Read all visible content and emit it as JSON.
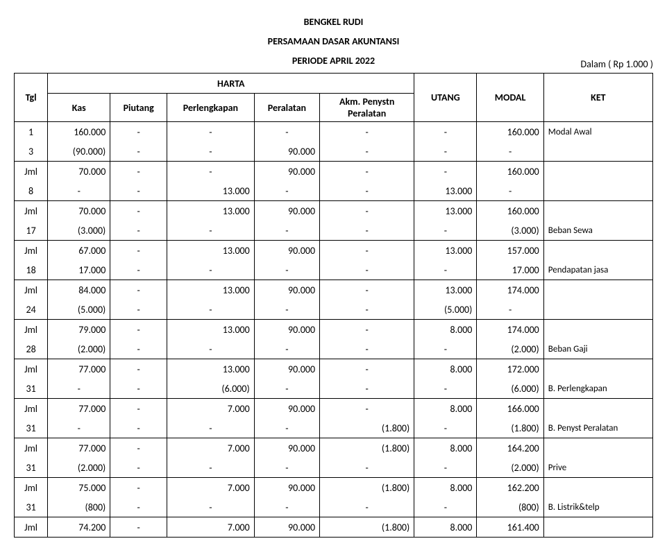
{
  "header": {
    "title1": "BENGKEL RUDI",
    "title2": "PERSAMAAN DASAR AKUNTANSI",
    "title3": "PERIODE APRIL 2022",
    "unit_note": "Dalam ( Rp 1.000 )"
  },
  "columns": {
    "tgl": "Tgl",
    "harta": "HARTA",
    "utang": "UTANG",
    "modal": "MODAL",
    "ket": "KET",
    "kas": "Kas",
    "piutang": "Piutang",
    "perlengkapan": "Perlengkapan",
    "peralatan": "Peralatan",
    "akm": "Akm. Penystn Peralatan"
  },
  "rows": [
    {
      "tgl": "1",
      "kas": "160.000",
      "piu": "-",
      "perl": "-",
      "pera": "-",
      "akm": "-",
      "utg": "-",
      "mod": "160.000",
      "ket": "Modal Awal"
    },
    {
      "tgl": "3",
      "kas": "(90.000)",
      "piu": "-",
      "perl": "-",
      "pera": "90.000",
      "akm": "-",
      "utg": "-",
      "mod": "-",
      "ket": ""
    },
    {
      "tgl": "Jml",
      "kas": "70.000",
      "piu": "-",
      "perl": "-",
      "pera": "90.000",
      "akm": "-",
      "utg": "-",
      "mod": "160.000",
      "ket": ""
    },
    {
      "tgl": "8",
      "kas": "-",
      "piu": "-",
      "perl": "13.000",
      "pera": "-",
      "akm": "-",
      "utg": "13.000",
      "mod": "-",
      "ket": ""
    },
    {
      "tgl": "Jml",
      "kas": "70.000",
      "piu": "-",
      "perl": "13.000",
      "pera": "90.000",
      "akm": "-",
      "utg": "13.000",
      "mod": "160.000",
      "ket": ""
    },
    {
      "tgl": "17",
      "kas": "(3.000)",
      "piu": "-",
      "perl": "-",
      "pera": "-",
      "akm": "-",
      "utg": "-",
      "mod": "(3.000)",
      "ket": "Beban Sewa"
    },
    {
      "tgl": "Jml",
      "kas": "67.000",
      "piu": "-",
      "perl": "13.000",
      "pera": "90.000",
      "akm": "-",
      "utg": "13.000",
      "mod": "157.000",
      "ket": ""
    },
    {
      "tgl": "18",
      "kas": "17.000",
      "piu": "-",
      "perl": "-",
      "pera": "-",
      "akm": "-",
      "utg": "-",
      "mod": "17.000",
      "ket": "Pendapatan jasa"
    },
    {
      "tgl": "Jml",
      "kas": "84.000",
      "piu": "-",
      "perl": "13.000",
      "pera": "90.000",
      "akm": "-",
      "utg": "13.000",
      "mod": "174.000",
      "ket": ""
    },
    {
      "tgl": "24",
      "kas": "(5.000)",
      "piu": "-",
      "perl": "-",
      "pera": "-",
      "akm": "-",
      "utg": "(5.000)",
      "mod": "-",
      "ket": ""
    },
    {
      "tgl": "Jml",
      "kas": "79.000",
      "piu": "-",
      "perl": "13.000",
      "pera": "90.000",
      "akm": "-",
      "utg": "8.000",
      "mod": "174.000",
      "ket": ""
    },
    {
      "tgl": "28",
      "kas": "(2.000)",
      "piu": "-",
      "perl": "-",
      "pera": "-",
      "akm": "-",
      "utg": "-",
      "mod": "(2.000)",
      "ket": "Beban Gaji"
    },
    {
      "tgl": "Jml",
      "kas": "77.000",
      "piu": "-",
      "perl": "13.000",
      "pera": "90.000",
      "akm": "-",
      "utg": "8.000",
      "mod": "172.000",
      "ket": ""
    },
    {
      "tgl": "31",
      "kas": "-",
      "piu": "-",
      "perl": "(6.000)",
      "pera": "-",
      "akm": "-",
      "utg": "-",
      "mod": "(6.000)",
      "ket": "B. Perlengkapan"
    },
    {
      "tgl": "Jml",
      "kas": "77.000",
      "piu": "-",
      "perl": "7.000",
      "pera": "90.000",
      "akm": "-",
      "utg": "8.000",
      "mod": "166.000",
      "ket": ""
    },
    {
      "tgl": "31",
      "kas": "-",
      "piu": "-",
      "perl": "-",
      "pera": "-",
      "akm": "(1.800)",
      "utg": "-",
      "mod": "(1.800)",
      "ket": "B. Penyst Peralatan"
    },
    {
      "tgl": "Jml",
      "kas": "77.000",
      "piu": "-",
      "perl": "7.000",
      "pera": "90.000",
      "akm": "(1.800)",
      "utg": "8.000",
      "mod": "164.200",
      "ket": ""
    },
    {
      "tgl": "31",
      "kas": "(2.000)",
      "piu": "-",
      "perl": "-",
      "pera": "-",
      "akm": "-",
      "utg": "-",
      "mod": "(2.000)",
      "ket": "Prive"
    },
    {
      "tgl": "Jml",
      "kas": "75.000",
      "piu": "-",
      "perl": "7.000",
      "pera": "90.000",
      "akm": "(1.800)",
      "utg": "8.000",
      "mod": "162.200",
      "ket": ""
    },
    {
      "tgl": "31",
      "kas": "(800)",
      "piu": "-",
      "perl": "-",
      "pera": "-",
      "akm": "-",
      "utg": "-",
      "mod": "(800)",
      "ket": "B. Listrik&telp"
    },
    {
      "tgl": "Jml",
      "kas": "74.200",
      "piu": "-",
      "perl": "7.000",
      "pera": "90.000",
      "akm": "(1.800)",
      "utg": "8.000",
      "mod": "161.400",
      "ket": ""
    }
  ]
}
